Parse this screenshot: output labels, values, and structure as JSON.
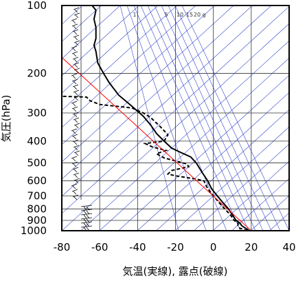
{
  "chart_data": {
    "type": "line",
    "xlabel": "気温(実線), 露点(破線)",
    "ylabel": "気圧(hPa)",
    "xlim": [
      -80,
      40
    ],
    "ylim": [
      1000,
      100
    ],
    "yscale": "log",
    "x_ticks": [
      "-80",
      "-60",
      "-40",
      "-20",
      "0",
      "20",
      "40"
    ],
    "y_ticks": [
      "100",
      "200",
      "300",
      "400",
      "500",
      "600",
      "700",
      "800",
      "900",
      "1000"
    ],
    "mixing_ratio_labels": [
      "1",
      "5",
      "10",
      "15",
      "20",
      "g"
    ],
    "series": [
      {
        "style": "solid",
        "color": "#000000",
        "points": [
          [
            19,
            1000
          ],
          [
            17,
            975
          ],
          [
            15,
            950
          ],
          [
            14,
            925
          ],
          [
            12,
            900
          ],
          [
            10,
            850
          ],
          [
            8,
            800
          ],
          [
            5,
            750
          ],
          [
            2,
            700
          ],
          [
            -1,
            650
          ],
          [
            -3,
            600
          ],
          [
            -6,
            550
          ],
          [
            -9,
            500
          ],
          [
            -12,
            470
          ],
          [
            -17,
            450
          ],
          [
            -22,
            430
          ],
          [
            -26,
            400
          ],
          [
            -30,
            370
          ],
          [
            -33,
            340
          ],
          [
            -37,
            310
          ],
          [
            -43,
            280
          ],
          [
            -50,
            250
          ],
          [
            -55,
            220
          ],
          [
            -58,
            200
          ],
          [
            -61,
            180
          ],
          [
            -62,
            160
          ],
          [
            -63,
            150
          ],
          [
            -62,
            140
          ],
          [
            -62,
            125
          ],
          [
            -63,
            115
          ],
          [
            -62,
            105
          ],
          [
            -64,
            100
          ]
        ]
      },
      {
        "style": "dashed",
        "color": "#000000",
        "points": [
          [
            18,
            1000
          ],
          [
            14,
            975
          ],
          [
            13,
            950
          ],
          [
            13,
            925
          ],
          [
            11,
            900
          ],
          [
            9,
            850
          ],
          [
            6,
            800
          ],
          [
            3,
            750
          ],
          [
            0,
            700
          ],
          [
            -3,
            650
          ],
          [
            -5,
            600
          ],
          [
            -9,
            590
          ],
          [
            -20,
            570
          ],
          [
            -24,
            560
          ],
          [
            -22,
            540
          ],
          [
            -13,
            520
          ],
          [
            -14,
            505
          ],
          [
            -18,
            495
          ],
          [
            -26,
            475
          ],
          [
            -30,
            455
          ],
          [
            -25,
            440
          ],
          [
            -32,
            425
          ],
          [
            -36,
            410
          ],
          [
            -26,
            400
          ],
          [
            -24,
            375
          ],
          [
            -28,
            345
          ],
          [
            -33,
            315
          ],
          [
            -37,
            300
          ],
          [
            -43,
            285
          ],
          [
            -60,
            275
          ],
          [
            -65,
            265
          ],
          [
            -67,
            255
          ],
          [
            -80,
            253
          ]
        ]
      },
      {
        "style": "solid",
        "color": "#ff0000",
        "points": [
          [
            20,
            1000
          ],
          [
            -80,
            170
          ]
        ]
      }
    ]
  }
}
